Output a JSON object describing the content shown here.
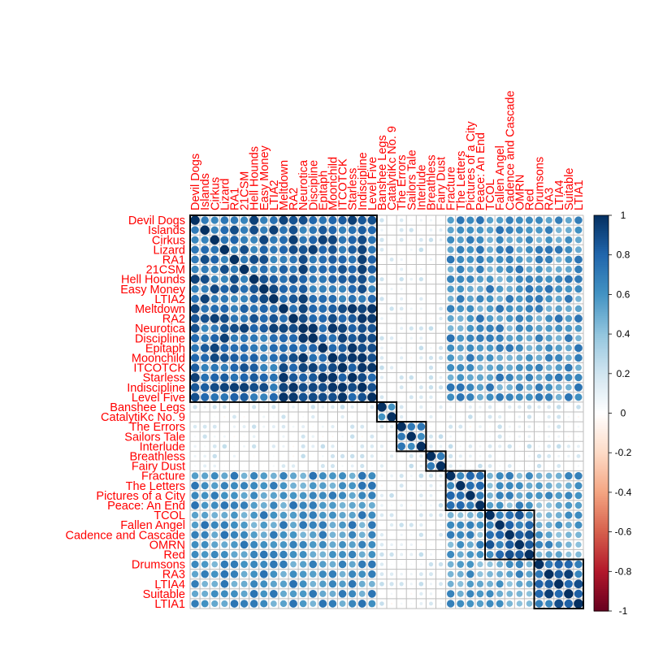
{
  "chart_data": {
    "type": "heatmap",
    "subtype": "correlation-circle-matrix",
    "labels": [
      "Devil Dogs",
      "Islands",
      "Cirkus",
      "Lizard",
      "RA1",
      "21CSM",
      "Hell Hounds",
      "Easy Money",
      "LTIA2",
      "Meltdown",
      "RA2",
      "Neurotica",
      "Discipline",
      "Epitaph",
      "Moonchild",
      "ITCOTCK",
      "Starless",
      "Indiscipline",
      "Level Five",
      "Banshee Legs",
      "CatalytiKc No. 9",
      "The Errors",
      "Sailors Tale",
      "Interlude",
      "Breathless",
      "Fairy Dust",
      "Fracture",
      "The Letters",
      "Pictures of a City",
      "Peace: An End",
      "TCOL",
      "Fallen Angel",
      "Cadence and Cascade",
      "OMRN",
      "Red",
      "Drumsons",
      "RA3",
      "LTIA4",
      "Suitable",
      "LTIA1"
    ],
    "clusters": [
      {
        "start": 0,
        "end": 18
      },
      {
        "start": 19,
        "end": 20
      },
      {
        "start": 21,
        "end": 23
      },
      {
        "start": 24,
        "end": 25
      },
      {
        "start": 26,
        "end": 29
      },
      {
        "start": 30,
        "end": 34
      },
      {
        "start": 35,
        "end": 39
      }
    ],
    "approximate_block_correlations": {
      "block_0_within": 0.8,
      "block_0_diagonal_subblock_9_18": 0.9,
      "blocks_4_5_6_vs_block_0": 0.6,
      "blocks_4_5_6_within": 0.55,
      "block_6_within": 0.8,
      "blocks_1_2_3_vs_others": 0.1
    },
    "colorbar": {
      "ticks": [
        "-1",
        "-0.8",
        "-0.6",
        "-0.4",
        "-0.2",
        "0",
        "0.2",
        "0.4",
        "0.6",
        "0.8",
        "1"
      ],
      "range": [
        -1,
        1
      ],
      "negative_color": "#67001F",
      "neutral_color": "#FFFFFF",
      "positive_color": "#053061"
    },
    "label_color": "#FF0000",
    "grid_color": "#BEBEBE",
    "cluster_box_color": "#000000",
    "grid": true,
    "legend_placement": "right"
  }
}
